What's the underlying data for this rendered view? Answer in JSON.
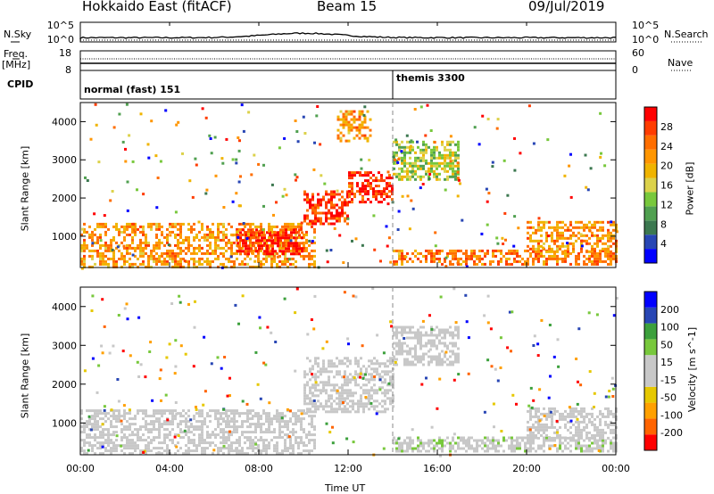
{
  "header": {
    "station": "Hokkaido East (fitACF)",
    "beam": "Beam 15",
    "date": "09/Jul/2019"
  },
  "summary_panels": {
    "nsky_label": "N.Sky",
    "nsky_ticks": [
      "10^5",
      "10^0"
    ],
    "nsearch_label": "N.Search",
    "nsearch_ticks": [
      "10^5",
      "10^0"
    ],
    "freq_label": "Freq.",
    "freq_unit": "[MHz]",
    "freq_ticks": [
      "18",
      "8"
    ],
    "nave_label": "Nave",
    "nave_ticks": [
      "60",
      "0"
    ],
    "cpid_label": "CPID",
    "cpid_modes": [
      {
        "name": "normal (fast) 151",
        "start_ut": "00:00",
        "end_ut": "14:00"
      },
      {
        "name": "themis 3300",
        "start_ut": "14:00",
        "end_ut": "24:00"
      }
    ]
  },
  "x_axis": {
    "label": "Time UT",
    "ticks": [
      "00:00",
      "04:00",
      "08:00",
      "12:00",
      "16:00",
      "20:00",
      "00:00"
    ]
  },
  "chart_data": [
    {
      "type": "heatmap",
      "panel": "power",
      "ylabel": "Slant Range [km]",
      "yticks": [
        "4000",
        "3000",
        "2000",
        "1000"
      ],
      "ylim": [
        180,
        4500
      ],
      "xlim_hours": [
        0,
        24
      ],
      "colorbar_label": "Power [dB]",
      "colorbar_ticks": [
        "28",
        "24",
        "20",
        "16",
        "12",
        "8",
        "4"
      ],
      "colorbar_range": [
        0,
        32
      ],
      "colors": [
        "#0000ff",
        "#2846b4",
        "#3c7850",
        "#50a050",
        "#78c83c",
        "#dcd24b",
        "#f0b400",
        "#ff9600",
        "#ff6e00",
        "#ff3c00",
        "#ff0000"
      ],
      "regions": [
        {
          "t": [
            0,
            10.5
          ],
          "r": [
            200,
            1350
          ],
          "value": 22
        },
        {
          "t": [
            7,
            10
          ],
          "r": [
            500,
            1200
          ],
          "value": 30
        },
        {
          "t": [
            10,
            12
          ],
          "r": [
            1300,
            2200
          ],
          "value": 28
        },
        {
          "t": [
            12,
            14
          ],
          "r": [
            1900,
            2700
          ],
          "value": 29
        },
        {
          "t": [
            14,
            17
          ],
          "r": [
            2500,
            3500
          ],
          "value": 14
        },
        {
          "t": [
            14,
            24
          ],
          "r": [
            250,
            650
          ],
          "value": 24
        },
        {
          "t": [
            20,
            24
          ],
          "r": [
            600,
            1400
          ],
          "value": 22
        },
        {
          "t": [
            11.5,
            13
          ],
          "r": [
            3500,
            4300
          ],
          "value": 22
        }
      ]
    },
    {
      "type": "heatmap",
      "panel": "velocity",
      "ylabel": "Slant Range [km]",
      "yticks": [
        "4000",
        "3000",
        "2000",
        "1000"
      ],
      "ylim": [
        180,
        4500
      ],
      "xlim_hours": [
        0,
        24
      ],
      "colorbar_label": "Velocity [m s^-1]",
      "colorbar_ticks": [
        "200",
        "100",
        "50",
        "15",
        "-15",
        "-50",
        "-100",
        "-200"
      ],
      "colorbar_range": [
        -250,
        250
      ],
      "colors": [
        "#ff0000",
        "#ff6400",
        "#ffa000",
        "#e6c800",
        "#c8c8c8",
        "#c8c8c8",
        "#78c83c",
        "#3ca03c",
        "#2846b4",
        "#0000ff"
      ],
      "regions": [
        {
          "t": [
            0,
            10.5
          ],
          "r": [
            200,
            1350
          ],
          "value": 0
        },
        {
          "t": [
            10,
            14
          ],
          "r": [
            1300,
            2700
          ],
          "value": 0
        },
        {
          "t": [
            14,
            17
          ],
          "r": [
            2500,
            3500
          ],
          "value": 0
        },
        {
          "t": [
            14,
            24
          ],
          "r": [
            250,
            650
          ],
          "value": 40
        },
        {
          "t": [
            20,
            24
          ],
          "r": [
            600,
            1400
          ],
          "value": 0
        }
      ]
    }
  ]
}
